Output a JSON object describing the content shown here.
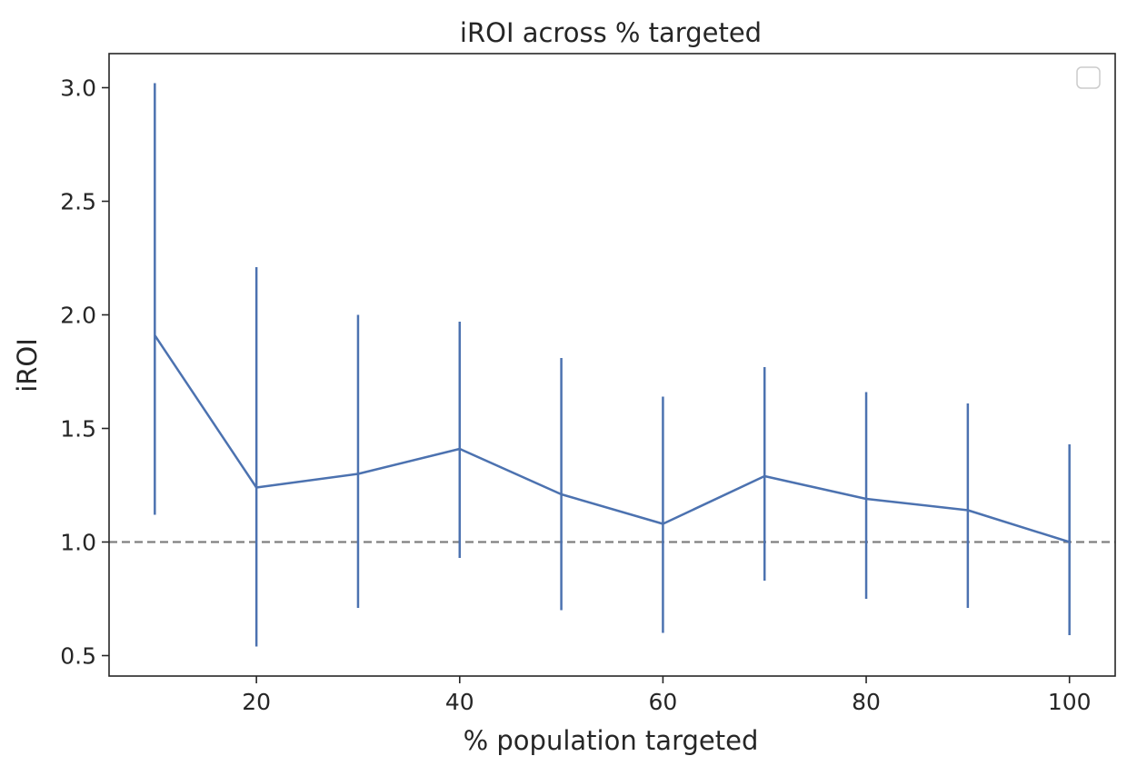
{
  "chart_data": {
    "type": "line",
    "title": "iROI across % targeted",
    "xlabel": "% population targeted",
    "ylabel": "iROI",
    "xlim": [
      5.5,
      104.5
    ],
    "ylim": [
      0.41,
      3.15
    ],
    "xticks": [
      "20",
      "40",
      "60",
      "80",
      "100"
    ],
    "yticks": [
      "0.5",
      "1.0",
      "1.5",
      "2.0",
      "2.5",
      "3.0"
    ],
    "series": [
      {
        "color": "#4c72b0",
        "x": [
          10,
          20,
          30,
          40,
          50,
          60,
          70,
          80,
          90,
          100
        ],
        "y": [
          1.91,
          1.24,
          1.3,
          1.41,
          1.21,
          1.08,
          1.29,
          1.19,
          1.14,
          1.0
        ],
        "error_low": [
          1.12,
          0.54,
          0.71,
          0.93,
          0.7,
          0.6,
          0.83,
          0.75,
          0.71,
          0.59
        ],
        "error_high": [
          3.02,
          2.21,
          2.0,
          1.97,
          1.81,
          1.64,
          1.77,
          1.66,
          1.61,
          1.43
        ]
      }
    ],
    "reference_line": {
      "y": 1.0,
      "style": "dashed",
      "color": "#808080"
    },
    "legend": {
      "placement": "top-right",
      "entries": []
    },
    "grid": false
  }
}
